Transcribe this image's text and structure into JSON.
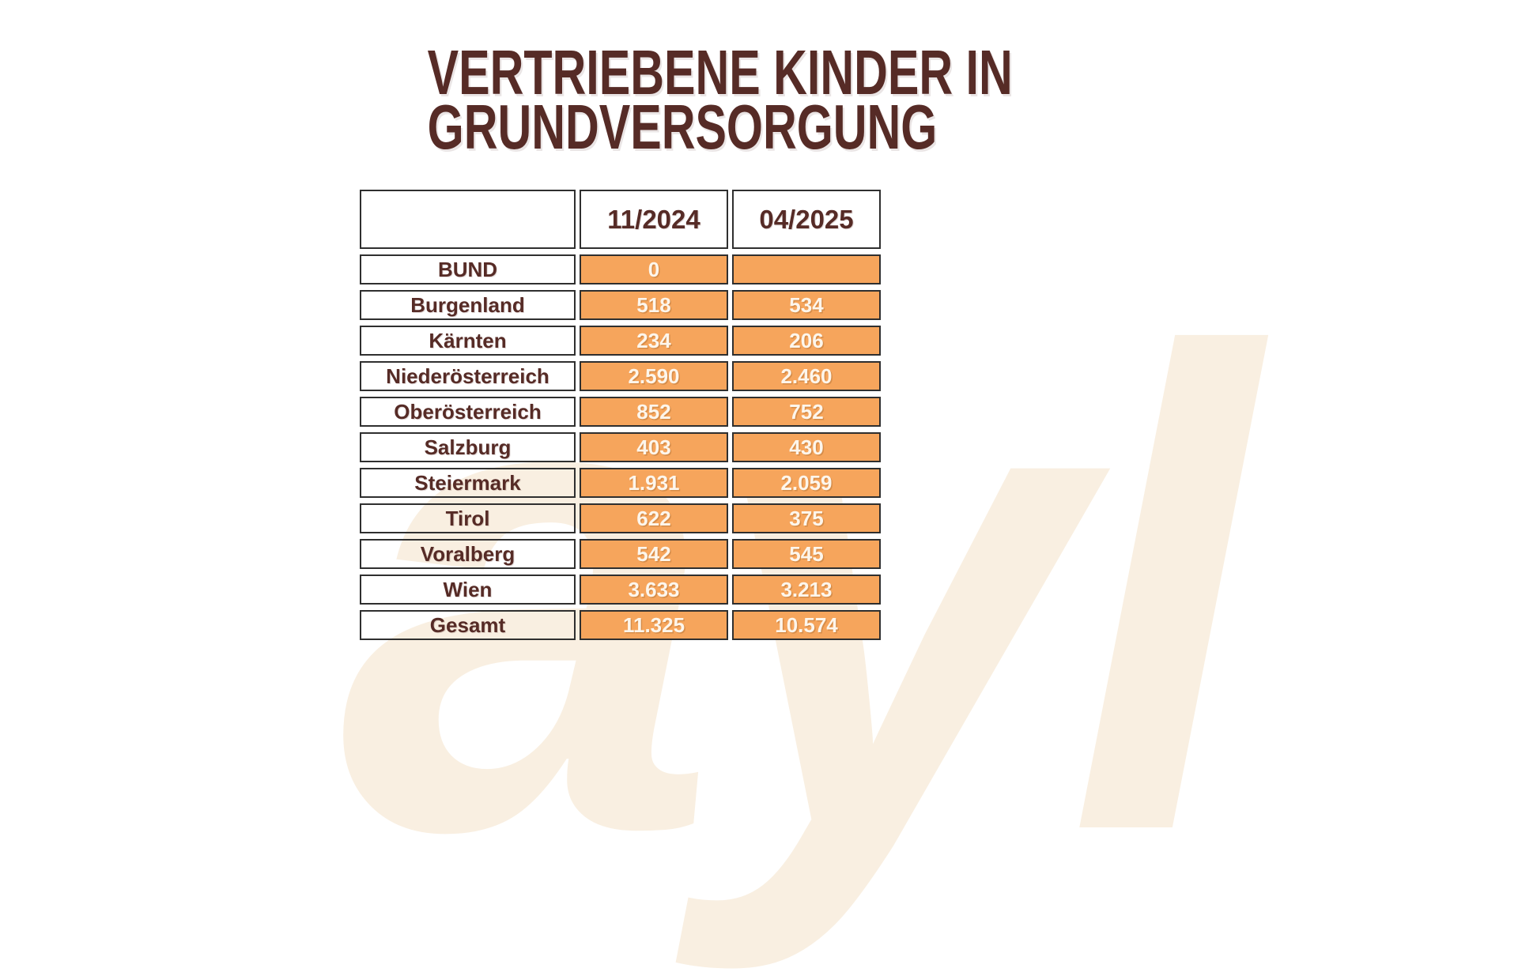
{
  "title": {
    "line1": "VERTRIEBENE KINDER IN",
    "line2": "GRUNDVERSORGUNG"
  },
  "watermark": {
    "text": "ayl"
  },
  "colors": {
    "title_brown": "#562b26",
    "cell_orange": "#f6a55c",
    "value_text": "#fdf6ec",
    "border": "#2f2f2f",
    "watermark_cream": "#f9efe1"
  },
  "table": {
    "header": {
      "col1": "",
      "col2": "11/2024",
      "col3": "04/2025"
    },
    "rows": [
      {
        "label": "BUND",
        "v1": "0",
        "v2": ""
      },
      {
        "label": "Burgenland",
        "v1": "518",
        "v2": "534"
      },
      {
        "label": "Kärnten",
        "v1": "234",
        "v2": "206"
      },
      {
        "label": "Niederösterreich",
        "v1": "2.590",
        "v2": "2.460"
      },
      {
        "label": "Oberösterreich",
        "v1": "852",
        "v2": "752"
      },
      {
        "label": "Salzburg",
        "v1": "403",
        "v2": "430"
      },
      {
        "label": "Steiermark",
        "v1": "1.931",
        "v2": "2.059"
      },
      {
        "label": "Tirol",
        "v1": "622",
        "v2": "375"
      },
      {
        "label": "Voralberg",
        "v1": "542",
        "v2": "545"
      },
      {
        "label": "Wien",
        "v1": "3.633",
        "v2": "3.213"
      },
      {
        "label": "Gesamt",
        "v1": "11.325",
        "v2": "10.574"
      }
    ]
  },
  "chart_data": {
    "type": "table",
    "title": "VERTRIEBENE KINDER IN GRUNDVERSORGUNG",
    "columns": [
      "11/2024",
      "04/2025"
    ],
    "rows": [
      "BUND",
      "Burgenland",
      "Kärnten",
      "Niederösterreich",
      "Oberösterreich",
      "Salzburg",
      "Steiermark",
      "Tirol",
      "Voralberg",
      "Wien",
      "Gesamt"
    ],
    "series": [
      {
        "name": "11/2024",
        "values": [
          0,
          518,
          234,
          2590,
          852,
          403,
          1931,
          622,
          542,
          3633,
          11325
        ]
      },
      {
        "name": "04/2025",
        "values": [
          null,
          534,
          206,
          2460,
          752,
          430,
          2059,
          375,
          545,
          3213,
          10574
        ]
      }
    ]
  }
}
